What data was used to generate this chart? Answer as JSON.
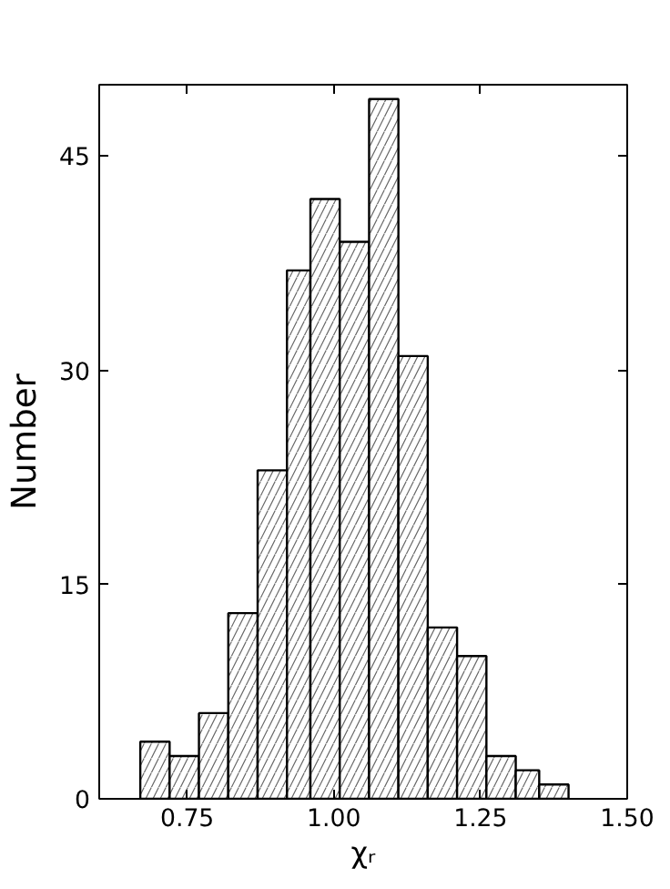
{
  "chart_data": {
    "type": "histogram",
    "xlabel": "χᵣ",
    "ylabel": "Number",
    "bins": [
      0.67,
      0.72,
      0.77,
      0.82,
      0.87,
      0.92,
      0.96,
      1.01,
      1.06,
      1.11,
      1.16,
      1.21,
      1.26,
      1.31,
      1.35,
      1.4
    ],
    "values": [
      4,
      3,
      6,
      13,
      23,
      37,
      42,
      39,
      49,
      31,
      12,
      10,
      3,
      2,
      1
    ],
    "color": "#ffffff",
    "xlim": [
      0.6,
      1.5
    ],
    "ylim": [
      0,
      50
    ],
    "xticks": [
      {
        "value": 0.75,
        "label": "0.75"
      },
      {
        "value": 1.0,
        "label": "1.00"
      },
      {
        "value": 1.25,
        "label": "1.25"
      },
      {
        "value": 1.5,
        "label": "1.50"
      }
    ],
    "yticks": [
      0,
      15,
      30,
      45
    ],
    "grid": false
  }
}
